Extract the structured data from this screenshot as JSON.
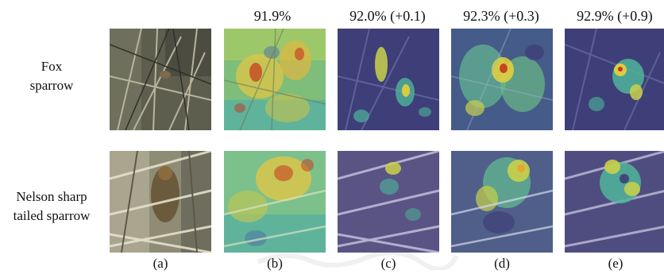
{
  "columns": [
    {
      "header": "",
      "caption": "(a)"
    },
    {
      "header": "91.9%",
      "caption": "(b)"
    },
    {
      "header": "92.0% (+0.1)",
      "caption": "(c)"
    },
    {
      "header": "92.3% (+0.3)",
      "caption": "(d)"
    },
    {
      "header": "92.9% (+0.9)",
      "caption": "(e)"
    }
  ],
  "rows": [
    {
      "label_line1": "Fox",
      "label_line2": "sparrow"
    },
    {
      "label_line1": "Nelson sharp",
      "label_line2": "tailed sparrow"
    }
  ],
  "colors": {
    "heat_hot": "#c8351c",
    "heat_warm": "#e8d23a",
    "heat_mid": "#4fb59a",
    "heat_cool": "#3d3f78",
    "photo_dark": "#55574a",
    "photo_light": "#c9c5b4"
  }
}
